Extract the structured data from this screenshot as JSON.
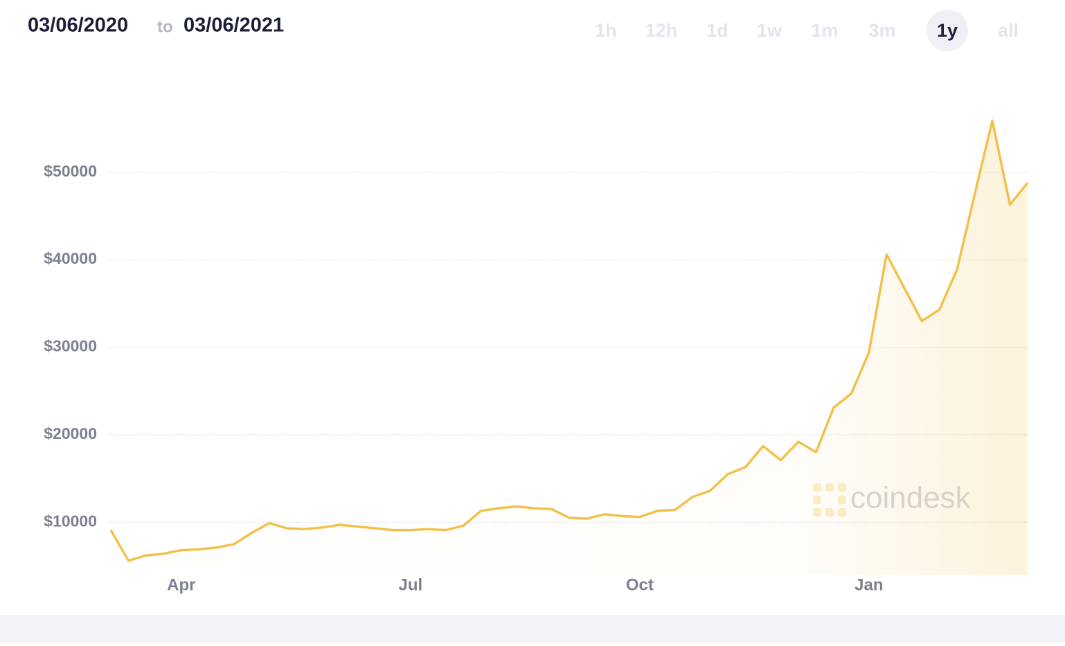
{
  "header": {
    "from": "03/06/2020",
    "to": "to",
    "until": "03/06/2021",
    "range_buttons": [
      {
        "label": "1h",
        "active": false
      },
      {
        "label": "12h",
        "active": false
      },
      {
        "label": "1d",
        "active": false
      },
      {
        "label": "1w",
        "active": false
      },
      {
        "label": "1m",
        "active": false
      },
      {
        "label": "3m",
        "active": false
      },
      {
        "label": "1y",
        "active": true
      },
      {
        "label": "all",
        "active": false
      }
    ]
  },
  "watermark": "coindesk",
  "chart_data": {
    "type": "line",
    "color": "#f2c14b",
    "area": true,
    "grid": true,
    "categories": [
      null,
      null,
      null,
      null,
      "Apr",
      null,
      null,
      null,
      null,
      null,
      null,
      null,
      null,
      null,
      null,
      null,
      null,
      "Jul",
      null,
      null,
      null,
      null,
      null,
      null,
      null,
      null,
      null,
      null,
      null,
      null,
      "Oct",
      null,
      null,
      null,
      null,
      null,
      null,
      null,
      null,
      null,
      null,
      null,
      null,
      "Jan",
      null,
      null,
      null,
      null,
      null,
      null,
      null,
      null,
      null
    ],
    "values": [
      9100,
      5600,
      6200,
      6400,
      6800,
      6900,
      7100,
      7500,
      8800,
      9900,
      9300,
      9200,
      9400,
      9700,
      9500,
      9300,
      9100,
      9100,
      9200,
      9100,
      9600,
      11300,
      11600,
      11800,
      11600,
      11500,
      10500,
      10400,
      10900,
      10700,
      10600,
      11300,
      11400,
      12900,
      13600,
      15500,
      16300,
      18700,
      17100,
      19200,
      18000,
      23100,
      24700,
      29400,
      40600,
      36800,
      33000,
      34300,
      38900,
      47500,
      55900,
      46300,
      48800
    ],
    "ylim": [
      4000,
      61700
    ],
    "yticks": [
      {
        "value": 10000,
        "label": "$10000"
      },
      {
        "value": 20000,
        "label": "$20000"
      },
      {
        "value": 30000,
        "label": "$30000"
      },
      {
        "value": 40000,
        "label": "$40000"
      },
      {
        "value": 50000,
        "label": "$50000"
      }
    ]
  }
}
